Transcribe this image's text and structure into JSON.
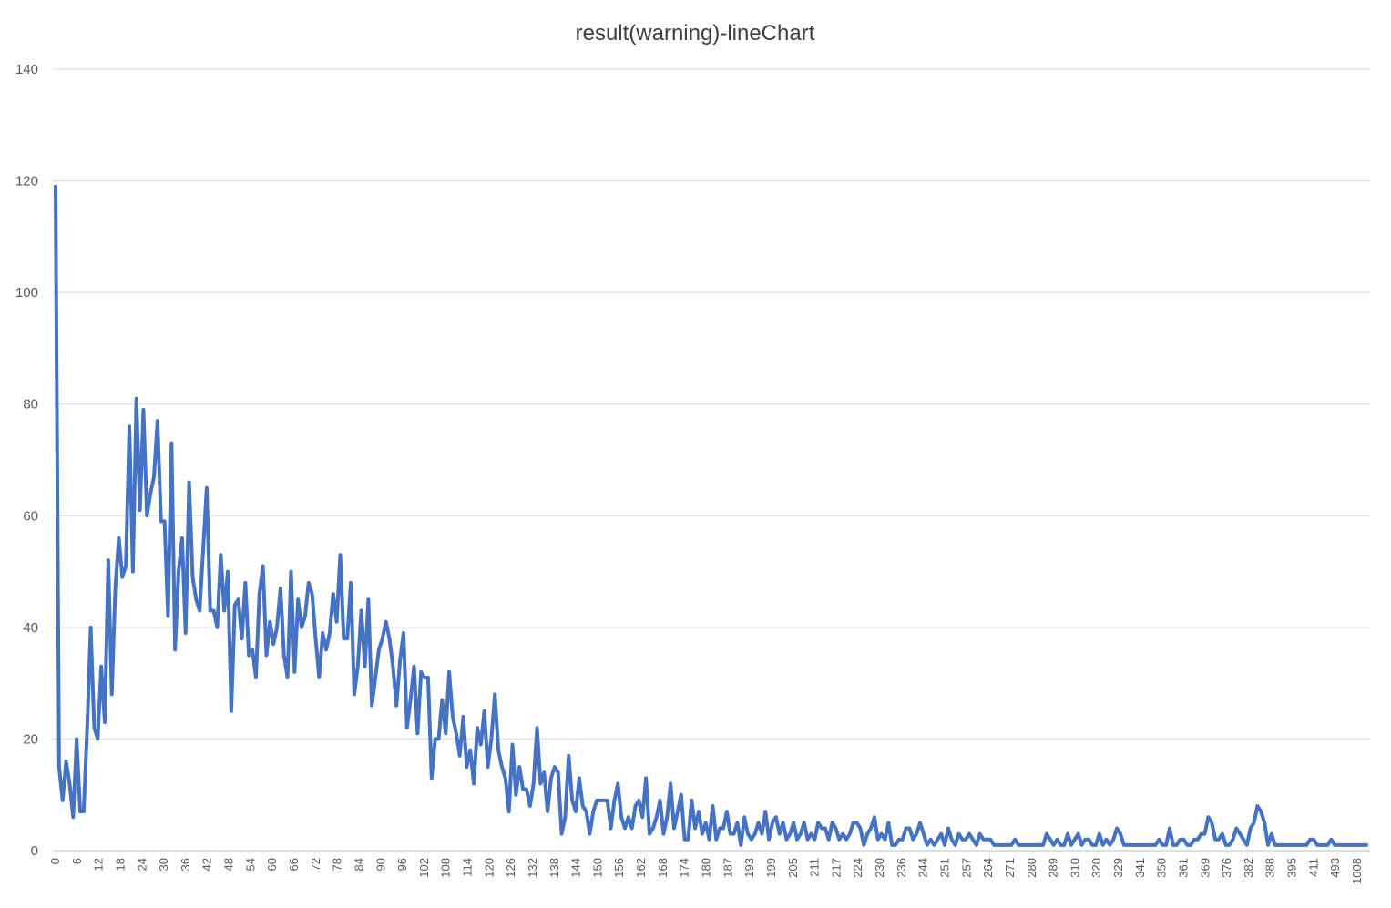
{
  "chart_data": {
    "type": "line",
    "title": "result(warning)-lineChart",
    "xlabel": "",
    "ylabel": "",
    "ylim": [
      0,
      140
    ],
    "yticks": [
      0,
      20,
      40,
      60,
      80,
      100,
      120,
      140
    ],
    "grid": true,
    "legend": "none",
    "line_color": "#4472C4",
    "x_tick_labels": [
      "0",
      "6",
      "12",
      "18",
      "24",
      "30",
      "36",
      "42",
      "48",
      "54",
      "60",
      "66",
      "72",
      "78",
      "84",
      "90",
      "96",
      "102",
      "108",
      "114",
      "120",
      "126",
      "132",
      "138",
      "144",
      "150",
      "156",
      "162",
      "168",
      "174",
      "180",
      "187",
      "193",
      "199",
      "205",
      "211",
      "217",
      "224",
      "230",
      "236",
      "244",
      "251",
      "257",
      "264",
      "271",
      "280",
      "289",
      "310",
      "320",
      "329",
      "341",
      "350",
      "361",
      "369",
      "376",
      "382",
      "388",
      "395",
      "411",
      "493",
      "1008"
    ],
    "series": [
      {
        "values": [
          119,
          15,
          9,
          16,
          12,
          6,
          20,
          7,
          7,
          22,
          40,
          22,
          20,
          33,
          23,
          52,
          28,
          47,
          56,
          49,
          51,
          76,
          50,
          81,
          61,
          79,
          60,
          64,
          67,
          77,
          59,
          59,
          42,
          73,
          36,
          50,
          56,
          39,
          66,
          49,
          45,
          43,
          54,
          65,
          43,
          43,
          40,
          53,
          43,
          50,
          25,
          44,
          45,
          38,
          48,
          35,
          36,
          31,
          46,
          51,
          35,
          41,
          37,
          40,
          47,
          35,
          31,
          50,
          32,
          45,
          40,
          42,
          48,
          46,
          38,
          31,
          39,
          36,
          39,
          46,
          41,
          53,
          38,
          38,
          48,
          28,
          33,
          43,
          33,
          45,
          26,
          31,
          36,
          38,
          41,
          38,
          33,
          26,
          34,
          39,
          22,
          27,
          33,
          21,
          32,
          31,
          31,
          13,
          20,
          20,
          27,
          21,
          32,
          24,
          21,
          17,
          24,
          15,
          18,
          12,
          22,
          19,
          25,
          15,
          20,
          28,
          18,
          15,
          13,
          7,
          19,
          10,
          15,
          11,
          11,
          8,
          12,
          22,
          12,
          14,
          7,
          13,
          15,
          14,
          3,
          6,
          17,
          9,
          7,
          13,
          8,
          7,
          3,
          7,
          9,
          9,
          9,
          9,
          4,
          9,
          12,
          6,
          4,
          6,
          4,
          8,
          9,
          6,
          13,
          3,
          4,
          6,
          9,
          3,
          6,
          12,
          4,
          7,
          10,
          2,
          2,
          9,
          4,
          7,
          3,
          5,
          2,
          8,
          2,
          4,
          4,
          7,
          3,
          3,
          5,
          1,
          6,
          3,
          2,
          3,
          5,
          3,
          7,
          2,
          5,
          6,
          3,
          5,
          2,
          3,
          5,
          2,
          3,
          5,
          2,
          3,
          2,
          5,
          4,
          4,
          2,
          5,
          4,
          2,
          3,
          2,
          3,
          5,
          5,
          4,
          1,
          3,
          4,
          6,
          2,
          3,
          2,
          5,
          1,
          1,
          2,
          2,
          4,
          4,
          2,
          3,
          5,
          3,
          1,
          2,
          1,
          2,
          3,
          1,
          4,
          2,
          1,
          3,
          2,
          2,
          3,
          2,
          1,
          3,
          2,
          2,
          2,
          1,
          1,
          1,
          1,
          1,
          1,
          2,
          1,
          1,
          1,
          1,
          1,
          1,
          1,
          1,
          3,
          2,
          1,
          2,
          1,
          1,
          3,
          1,
          2,
          3,
          1,
          2,
          2,
          1,
          1,
          3,
          1,
          2,
          1,
          2,
          4,
          3,
          1,
          1,
          1,
          1,
          1,
          1,
          1,
          1,
          1,
          1,
          2,
          1,
          1,
          4,
          1,
          1,
          2,
          2,
          1,
          1,
          2,
          2,
          3,
          3,
          6,
          5,
          2,
          2,
          3,
          1,
          1,
          2,
          4,
          3,
          2,
          1,
          4,
          5,
          8,
          7,
          5,
          1,
          3,
          1,
          1,
          1,
          1,
          1,
          1,
          1,
          1,
          1,
          1,
          2,
          2,
          1,
          1,
          1,
          1,
          2,
          1,
          1,
          1,
          1,
          1,
          1,
          1,
          1,
          1,
          1
        ]
      }
    ]
  }
}
